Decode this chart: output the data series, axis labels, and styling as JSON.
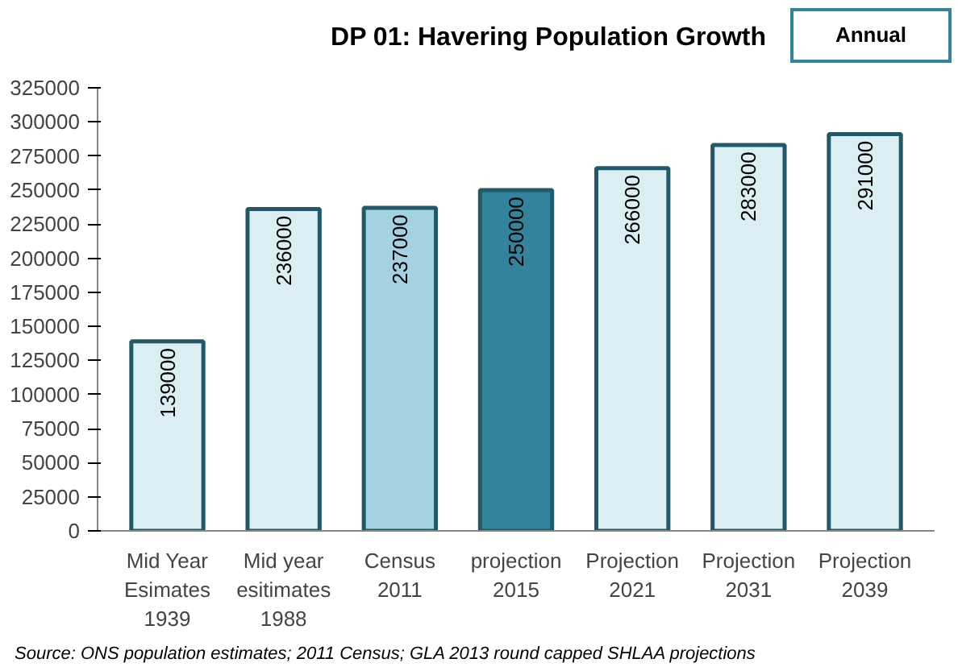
{
  "chart_data": {
    "type": "bar",
    "title": "DP 01: Havering Population Growth",
    "categories": [
      "Mid Year\nEsimates\n1939",
      "Mid year\nesitimates\n1988",
      "Census\n2011",
      "projection\n2015",
      "Projection\n2021",
      "Projection\n2031",
      "Projection\n2039"
    ],
    "values": [
      139000,
      236000,
      237000,
      250000,
      266000,
      283000,
      291000
    ],
    "colors": [
      "#dbeef4",
      "#dbeef4",
      "#a5d2e0",
      "#31849b",
      "#dbeef4",
      "#dbeef4",
      "#dbeef4"
    ],
    "ylim": [
      0,
      325000
    ],
    "yticks": [
      0,
      25000,
      50000,
      75000,
      100000,
      125000,
      150000,
      175000,
      200000,
      225000,
      250000,
      275000,
      300000,
      325000
    ],
    "data_labels": true,
    "grid": false,
    "annotations": [
      "Annual",
      "Source: ONS population estimates; 2011 Census; GLA 2013 round capped SHLAA projections"
    ]
  }
}
